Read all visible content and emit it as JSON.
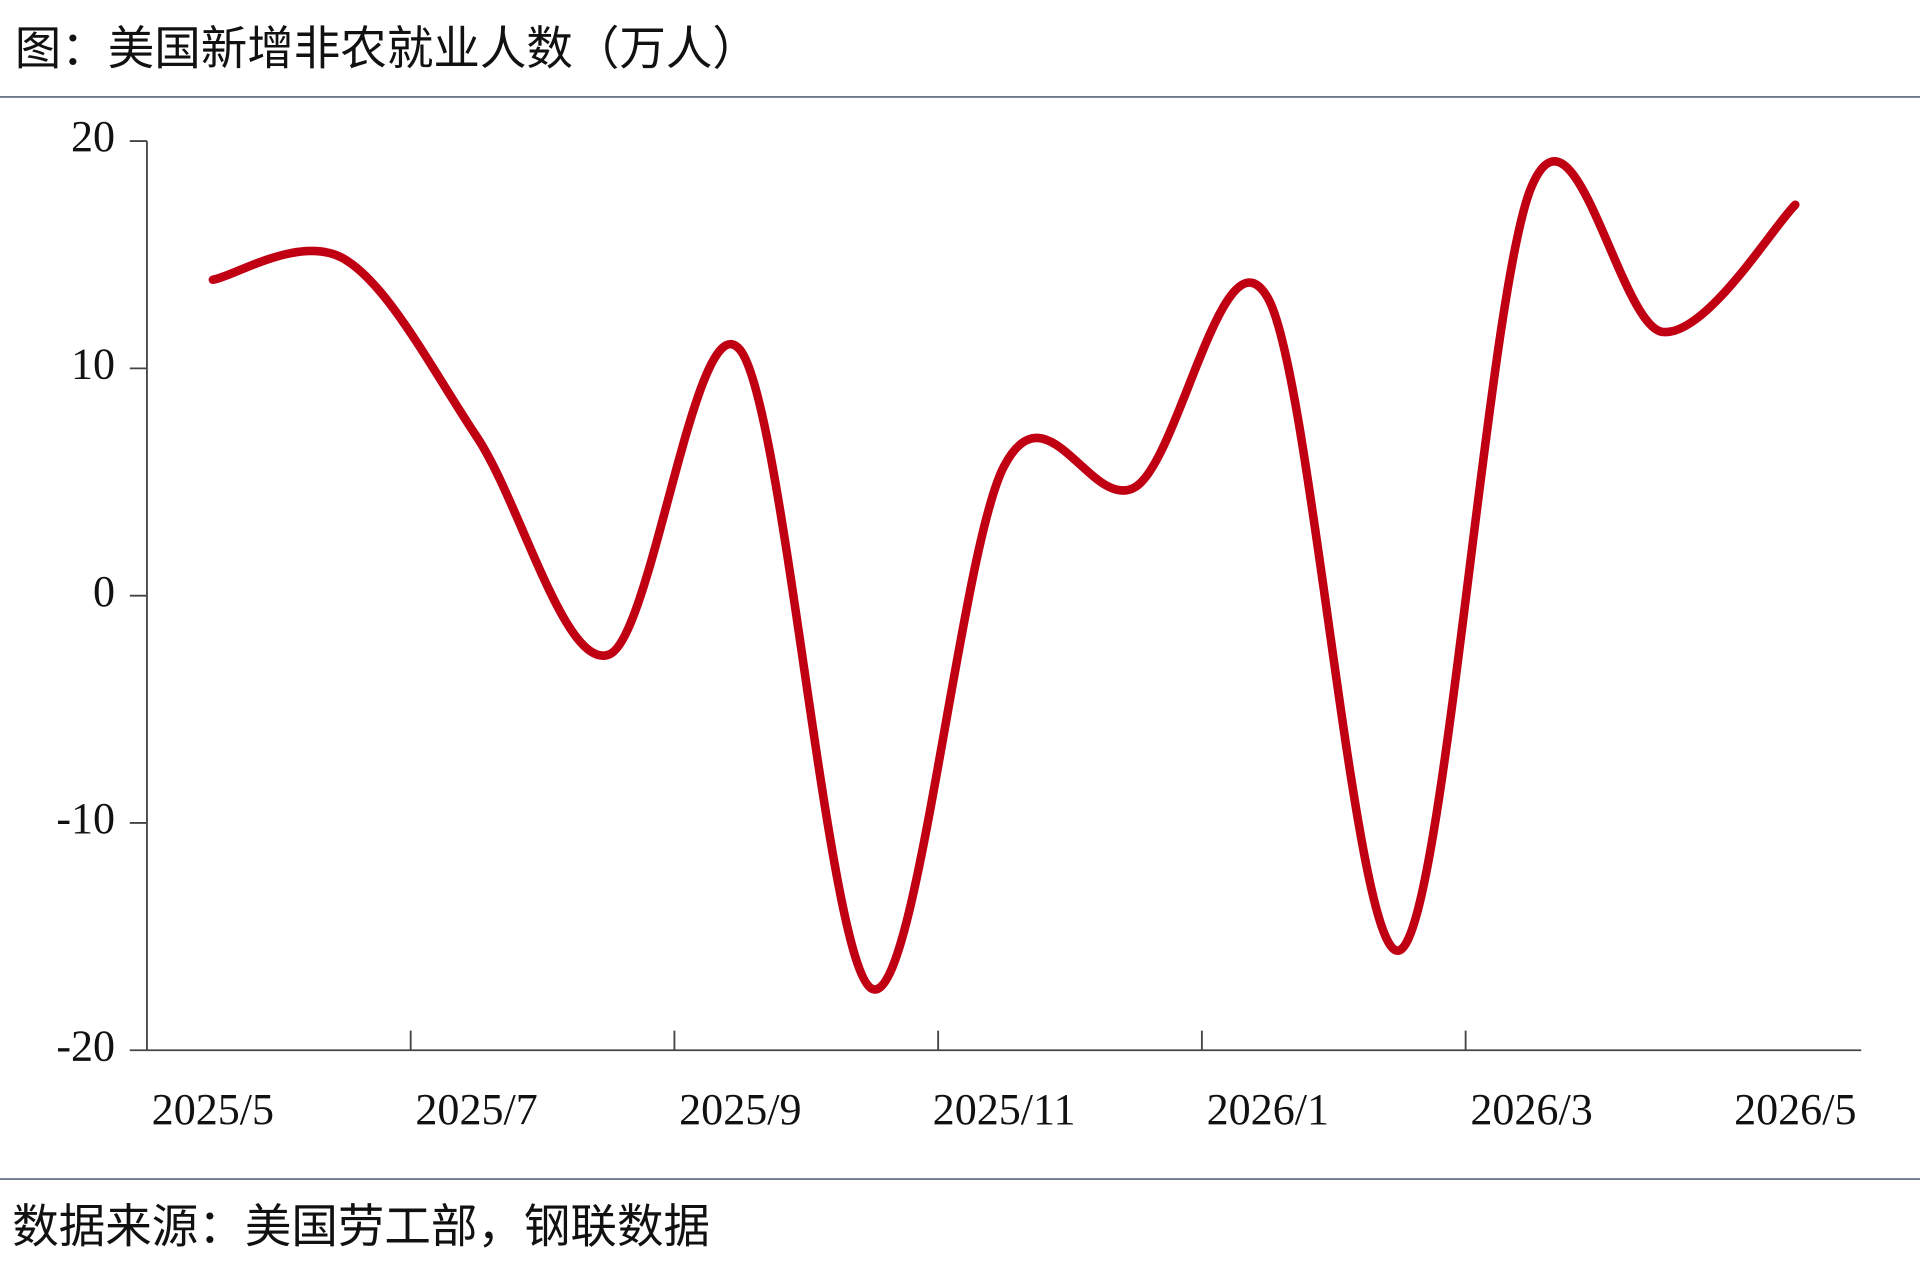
{
  "chart_data": {
    "type": "line",
    "title": "图：美国新增非农就业人数（万人）",
    "source": "数据来源：美国劳工部，钢联数据",
    "categories": [
      "2025/5",
      null,
      "2025/7",
      null,
      "2025/9",
      null,
      "2025/11",
      null,
      "2026/1",
      null,
      "2026/3",
      null,
      "2026/5"
    ],
    "series": [
      {
        "color": "#c00012",
        "values": [
          13.9,
          14.8,
          7.0,
          -2.6,
          10.8,
          -17.3,
          5.7,
          4.8,
          13.1,
          -15.6,
          18.0,
          11.6,
          17.2
        ]
      }
    ],
    "ylim": [
      -20,
      20
    ],
    "yticks": [
      -20,
      -10,
      0,
      10,
      20
    ],
    "grid": false
  }
}
